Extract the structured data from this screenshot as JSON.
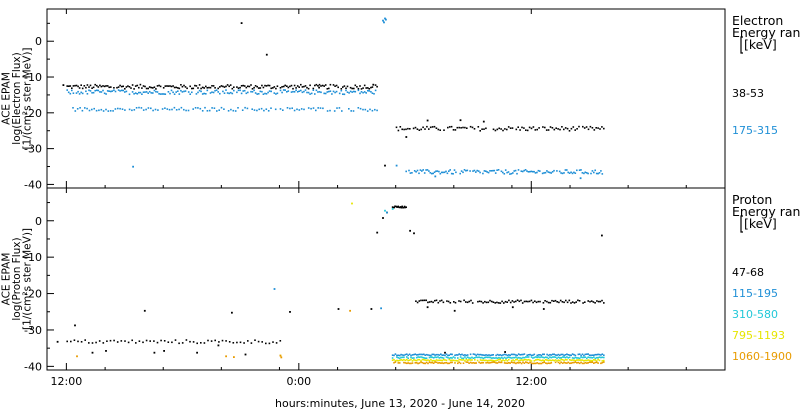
{
  "chart_data": [
    {
      "type": "scatter",
      "panel": "electron",
      "ylabel_lines": [
        "ACE EPAM",
        "log(Electron Flux)",
        "[1/(cm²s ster MeV)]"
      ],
      "ylim": [
        -41,
        9
      ],
      "yticks": [
        0,
        -10,
        -20,
        -30,
        -40
      ],
      "side_title": [
        "Electron",
        "Energy ranges",
        "[keV]"
      ],
      "series": [
        {
          "name": "38-53",
          "color": "#000000",
          "segments": [
            {
              "x0": 0.0,
              "x1": 16.0,
              "y": -12.5,
              "jitter": 0.6,
              "n": 200
            },
            {
              "x0": 17.0,
              "x1": 27.7,
              "y": -24.2,
              "jitter": 0.6,
              "n": 110
            }
          ],
          "extra_points": [
            [
              -0.2,
              -12.0
            ],
            [
              9.0,
              5.3
            ],
            [
              10.3,
              -3.5
            ],
            [
              13.0,
              -12.7
            ],
            [
              15.8,
              -11.9
            ],
            [
              18.6,
              -21.9
            ],
            [
              20.3,
              -21.8
            ],
            [
              21.5,
              -22.2
            ],
            [
              17.5,
              -26.5
            ],
            [
              16.4,
              -34.5
            ]
          ]
        },
        {
          "name": "175-315",
          "color": "#1f8fd6",
          "segments": [
            {
              "x0": 0.0,
              "x1": 16.0,
              "y": -14.0,
              "jitter": 0.6,
              "n": 200
            },
            {
              "x0": 0.3,
              "x1": 16.0,
              "y": -18.8,
              "jitter": 0.5,
              "n": 130
            },
            {
              "x0": 17.5,
              "x1": 27.7,
              "y": -36.3,
              "jitter": 0.6,
              "n": 140
            }
          ],
          "extra_points": [
            [
              3.4,
              -34.8
            ],
            [
              16.3,
              6.0
            ],
            [
              16.4,
              6.6
            ],
            [
              16.35,
              5.5
            ],
            [
              16.45,
              6.3
            ],
            [
              17.0,
              -34.5
            ],
            [
              19.0,
              -37.5
            ],
            [
              26.5,
              -38.0
            ]
          ]
        }
      ]
    },
    {
      "type": "scatter",
      "panel": "proton",
      "ylabel_lines": [
        "ACE EPAM",
        "log(Proton Flux)",
        "[1/(cm²s ster MeV)]"
      ],
      "ylim": [
        -41,
        9
      ],
      "yticks": [
        0,
        -10,
        -20,
        -30,
        -40
      ],
      "side_title": [
        "Proton",
        "Energy ranges",
        "[keV]"
      ],
      "xlabel": "hours:minutes, June 13, 2020 - June 14, 2020",
      "xlim": [
        -1.0,
        34.0
      ],
      "xticks": [
        {
          "x": 0,
          "label": "12:00"
        },
        {
          "x": 12,
          "label": "0:00"
        },
        {
          "x": 24,
          "label": "12:00"
        }
      ],
      "series": [
        {
          "name": "47-68",
          "color": "#000000",
          "segments": [
            {
              "x0": 0.0,
              "x1": 11.0,
              "y": -33.0,
              "jitter": 0.5,
              "n": 60
            },
            {
              "x0": 18.0,
              "x1": 27.7,
              "y": -22.0,
              "jitter": 0.4,
              "n": 110
            },
            {
              "x0": 16.8,
              "x1": 17.5,
              "y": 4.0,
              "jitter": 0.2,
              "n": 18
            }
          ],
          "extra_points": [
            [
              -0.5,
              -33.0
            ],
            [
              0.4,
              -28.5
            ],
            [
              1.3,
              -36.0
            ],
            [
              2.0,
              -35.5
            ],
            [
              4.0,
              -24.5
            ],
            [
              4.5,
              -36.0
            ],
            [
              5.0,
              -35.5
            ],
            [
              6.7,
              -36.0
            ],
            [
              7.8,
              -34.0
            ],
            [
              8.5,
              -25.0
            ],
            [
              9.2,
              -36.5
            ],
            [
              11.5,
              -24.8
            ],
            [
              14.0,
              -24.0
            ],
            [
              15.7,
              -24.0
            ],
            [
              16.0,
              -3.0
            ],
            [
              16.3,
              1.0
            ],
            [
              16.5,
              2.5
            ],
            [
              17.7,
              -2.5
            ],
            [
              17.9,
              -3.2
            ],
            [
              18.6,
              -23.5
            ],
            [
              20.0,
              -24.5
            ],
            [
              23.0,
              -23.5
            ],
            [
              24.6,
              -24.0
            ],
            [
              27.6,
              -3.8
            ],
            [
              22.6,
              -35.8
            ],
            [
              19.5,
              -36.0
            ]
          ]
        },
        {
          "name": "115-195",
          "color": "#1f8fd6",
          "segments": [
            {
              "x0": 16.8,
              "x1": 27.7,
              "y": -36.6,
              "jitter": 0.2,
              "n": 150
            }
          ],
          "extra_points": [
            [
              10.7,
              -18.5
            ],
            [
              16.2,
              -23.8
            ],
            [
              16.5,
              2.5
            ]
          ]
        },
        {
          "name": "310-580",
          "color": "#22c8d8",
          "segments": [
            {
              "x0": 16.8,
              "x1": 27.7,
              "y": -37.4,
              "jitter": 0.2,
              "n": 150
            }
          ],
          "extra_points": [
            [
              16.4,
              3.0
            ],
            [
              16.8,
              3.5
            ]
          ]
        },
        {
          "name": "795-1193",
          "color": "#e6e600",
          "segments": [
            {
              "x0": 16.8,
              "x1": 27.7,
              "y": -38.1,
              "jitter": 0.2,
              "n": 150
            }
          ],
          "extra_points": [
            [
              14.7,
              5.0
            ],
            [
              11.0,
              -36.8
            ]
          ]
        },
        {
          "name": "1060-1900",
          "color": "#e89b00",
          "segments": [
            {
              "x0": 16.8,
              "x1": 27.7,
              "y": -38.8,
              "jitter": 0.2,
              "n": 150
            }
          ],
          "extra_points": [
            [
              0.5,
              -37.0
            ],
            [
              8.2,
              -37.0
            ],
            [
              8.6,
              -37.2
            ],
            [
              11.0,
              -36.8
            ],
            [
              11.05,
              -37.3
            ],
            [
              14.6,
              -24.5
            ]
          ]
        }
      ]
    }
  ]
}
